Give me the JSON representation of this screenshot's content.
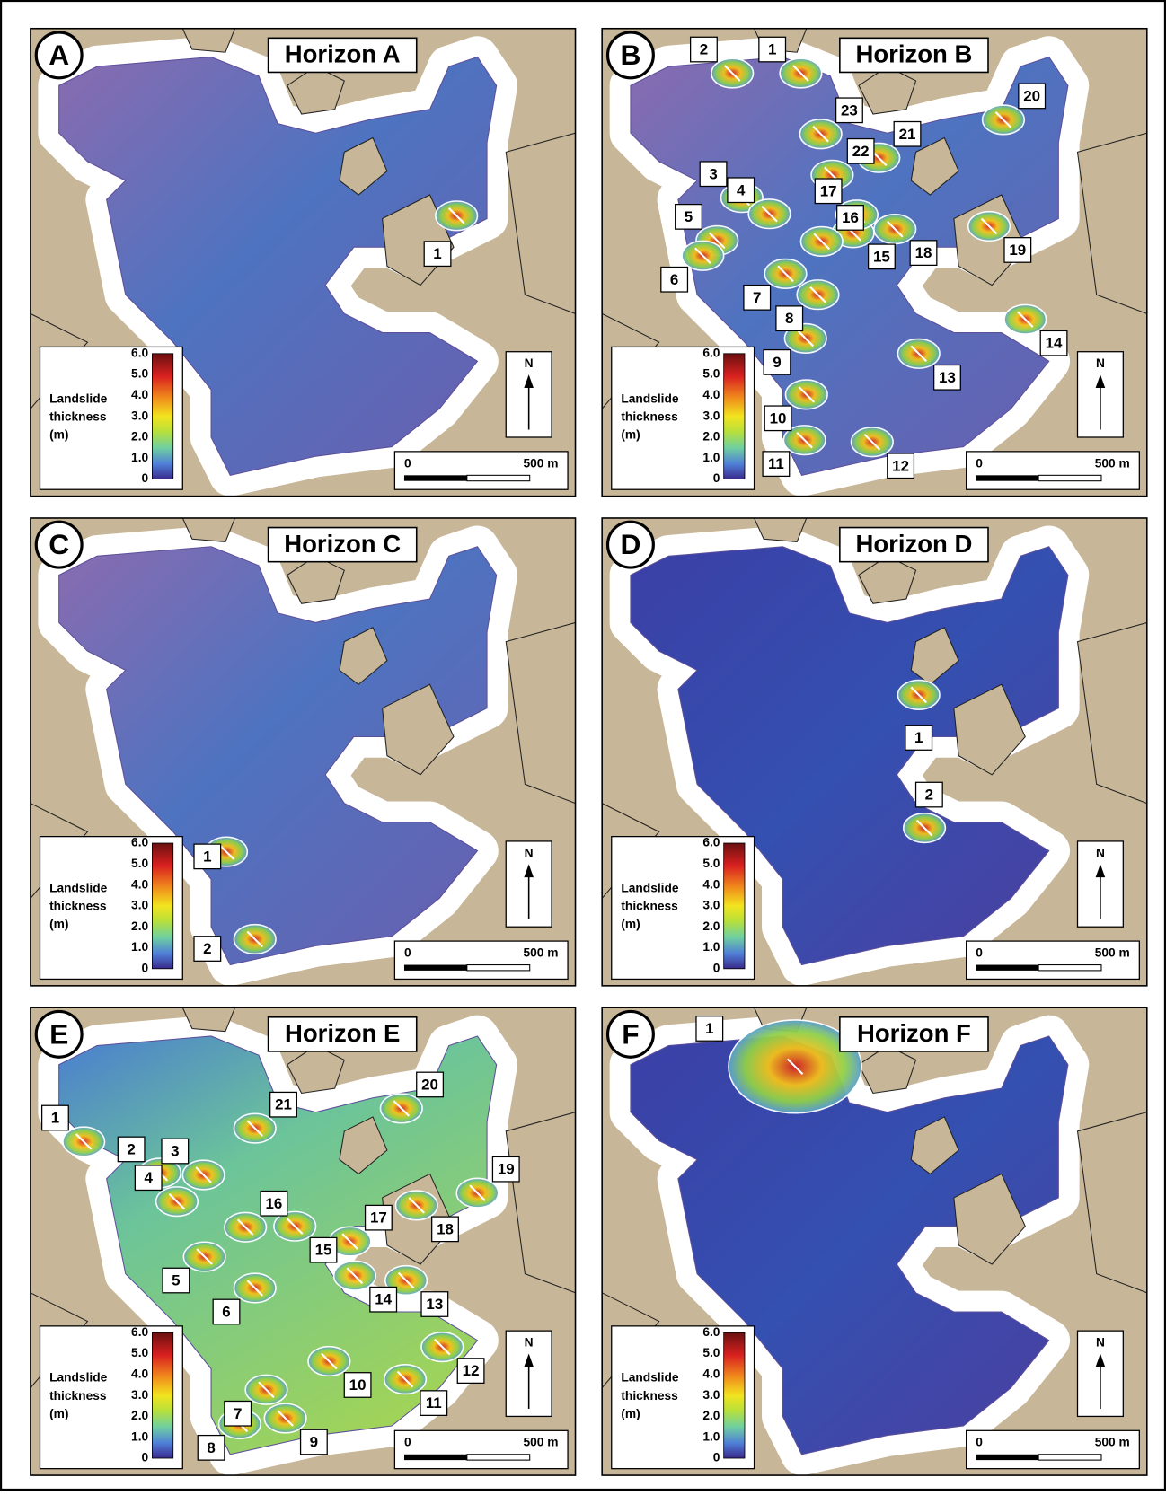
{
  "panels": [
    {
      "letter": "A",
      "title": "Horizon A",
      "legend": {
        "title": [
          "Landslide",
          "thickness",
          "(m)"
        ],
        "ticks": [
          "6.0",
          "5.0",
          "4.0",
          "3.0",
          "2.0",
          "1.0",
          "0"
        ]
      },
      "north": "N",
      "scale": {
        "start": "0",
        "end": "500 m"
      },
      "labels": [
        "1"
      ]
    },
    {
      "letter": "B",
      "title": "Horizon B",
      "legend": {
        "title": [
          "Landslide",
          "thickness",
          "(m)"
        ],
        "ticks": [
          "6.0",
          "5.0",
          "4.0",
          "3.0",
          "2.0",
          "1.0",
          "0"
        ]
      },
      "north": "N",
      "scale": {
        "start": "0",
        "end": "500 m"
      },
      "labels": [
        "1",
        "2",
        "3",
        "4",
        "5",
        "6",
        "7",
        "8",
        "9",
        "10",
        "11",
        "12",
        "13",
        "14",
        "15",
        "16",
        "17",
        "18",
        "19",
        "20",
        "21",
        "22",
        "23"
      ]
    },
    {
      "letter": "C",
      "title": "Horizon C",
      "legend": {
        "title": [
          "Landslide",
          "thickness",
          "(m)"
        ],
        "ticks": [
          "6.0",
          "5.0",
          "4.0",
          "3.0",
          "2.0",
          "1.0",
          "0"
        ]
      },
      "north": "N",
      "scale": {
        "start": "0",
        "end": "500 m"
      },
      "labels": [
        "1",
        "2"
      ]
    },
    {
      "letter": "D",
      "title": "Horizon D",
      "legend": {
        "title": [
          "Landslide",
          "thickness",
          "(m)"
        ],
        "ticks": [
          "6.0",
          "5.0",
          "4.0",
          "3.0",
          "2.0",
          "1.0",
          "0"
        ]
      },
      "north": "N",
      "scale": {
        "start": "0",
        "end": "500 m"
      },
      "labels": [
        "1",
        "2"
      ]
    },
    {
      "letter": "E",
      "title": "Horizon E",
      "legend": {
        "title": [
          "Landslide",
          "thickness",
          "(m)"
        ],
        "ticks": [
          "6.0",
          "5.0",
          "4.0",
          "3.0",
          "2.0",
          "1.0",
          "0"
        ]
      },
      "north": "N",
      "scale": {
        "start": "0",
        "end": "500 m"
      },
      "labels": [
        "1",
        "2",
        "3",
        "4",
        "5",
        "6",
        "7",
        "8",
        "9",
        "10",
        "11",
        "12",
        "13",
        "14",
        "15",
        "16",
        "17",
        "18",
        "19",
        "20",
        "21"
      ]
    },
    {
      "letter": "F",
      "title": "Horizon F",
      "legend": {
        "title": [
          "Landslide",
          "thickness",
          "(m)"
        ],
        "ticks": [
          "6.0",
          "5.0",
          "4.0",
          "3.0",
          "2.0",
          "1.0",
          "0"
        ]
      },
      "north": "N",
      "scale": {
        "start": "0",
        "end": "500 m"
      },
      "labels": [
        "1"
      ]
    }
  ]
}
